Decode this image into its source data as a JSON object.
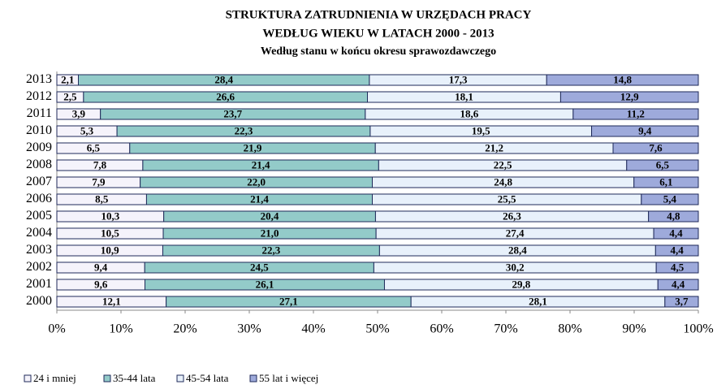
{
  "chart_data": {
    "type": "bar",
    "orientation": "horizontal",
    "stacked": "percent",
    "title": [
      "STRUKTURA  ZATRUDNIENIA  W URZĘDACH   PRACY",
      "WEDŁUG  WIEKU  W  LATACH  2000 - 2013"
    ],
    "subtitle": "Według stanu w końcu okresu sprawozdawczego",
    "categories": [
      "2013",
      "2012",
      "2011",
      "2010",
      "2009",
      "2008",
      "2007",
      "2006",
      "2005",
      "2004",
      "2003",
      "2002",
      "2001",
      "2000"
    ],
    "series": [
      {
        "name": "24 i mniej",
        "color": "#f5f3fb",
        "values": [
          2.1,
          2.5,
          3.9,
          5.3,
          6.5,
          7.8,
          7.9,
          8.5,
          10.3,
          10.5,
          10.9,
          9.4,
          9.6,
          12.1
        ],
        "value_labels": [
          "2,1",
          "2,5",
          "3,9",
          "5,3",
          "6,5",
          "7,8",
          "7,9",
          "8,5",
          "10,3",
          "10,5",
          "10,9",
          "9,4",
          "9,6",
          "12,1"
        ]
      },
      {
        "name": "35-44 lata",
        "color": "#93cbc9",
        "values": [
          28.4,
          26.6,
          23.7,
          22.3,
          21.9,
          21.4,
          22.0,
          21.4,
          20.4,
          21.0,
          22.3,
          24.5,
          26.1,
          27.1
        ],
        "value_labels": [
          "28,4",
          "26,6",
          "23,7",
          "22,3",
          "21,9",
          "21,4",
          "22,0",
          "21,4",
          "20,4",
          "21,0",
          "22,3",
          "24,5",
          "26,1",
          "27,1"
        ]
      },
      {
        "name": "45-54 lata",
        "color": "#e8f1fb",
        "values": [
          17.3,
          18.1,
          18.6,
          19.5,
          21.2,
          22.5,
          24.8,
          25.5,
          26.3,
          27.4,
          28.4,
          30.2,
          29.8,
          28.1
        ],
        "value_labels": [
          "17,3",
          "18,1",
          "18,6",
          "19,5",
          "21,2",
          "22,5",
          "24,8",
          "25,5",
          "26,3",
          "27,4",
          "28,4",
          "30,2",
          "29,8",
          "28,1"
        ]
      },
      {
        "name": "55 lat i więcej",
        "color": "#9eaadb",
        "values": [
          14.8,
          12.9,
          11.2,
          9.4,
          7.6,
          6.5,
          6.1,
          5.4,
          4.8,
          4.4,
          4.4,
          4.5,
          4.4,
          3.7
        ],
        "value_labels": [
          "14,8",
          "12,9",
          "11,2",
          "9,4",
          "7,6",
          "6,5",
          "6,1",
          "5,4",
          "4,8",
          "4,4",
          "4,4",
          "4,5",
          "4,4",
          "3,7"
        ]
      }
    ],
    "xlim": [
      0,
      100
    ],
    "xticks": [
      {
        "value": 0,
        "label": "0%"
      },
      {
        "value": 10,
        "label": "10%"
      },
      {
        "value": 20,
        "label": "20%"
      },
      {
        "value": 30,
        "label": "30%"
      },
      {
        "value": 40,
        "label": "40%"
      },
      {
        "value": 50,
        "label": "50%"
      },
      {
        "value": 60,
        "label": "60%"
      },
      {
        "value": 70,
        "label": "70%"
      },
      {
        "value": 80,
        "label": "80%"
      },
      {
        "value": 90,
        "label": "90%"
      },
      {
        "value": 100,
        "label": "100%"
      }
    ],
    "legend": "bottom-left"
  }
}
